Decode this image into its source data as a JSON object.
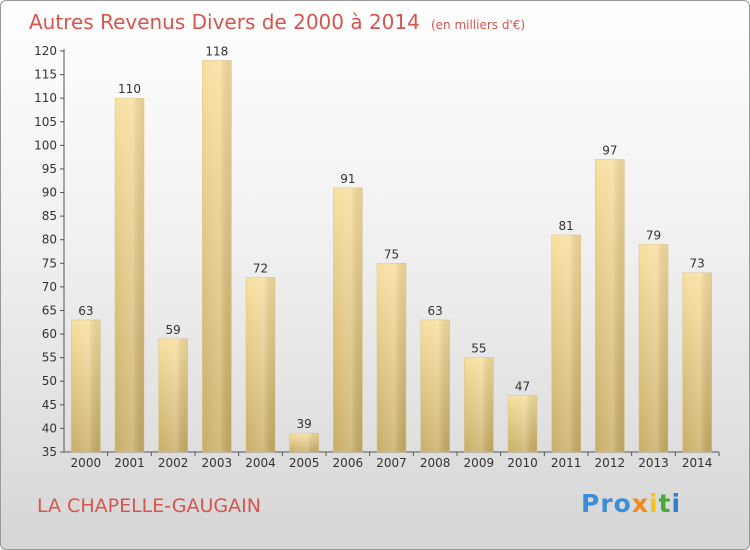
{
  "title": {
    "main": "Autres Revenus Divers de 2000 à 2014",
    "sub": "(en milliers d'€)"
  },
  "commune": "LA CHAPELLE-GAUGAIN",
  "logo": {
    "parts": [
      "Pro",
      "x",
      "i",
      "t",
      "i"
    ],
    "colors": [
      "#3a8fd8",
      "#f08a1c",
      "#f5c41a",
      "#47a83c",
      "#2f7fcf"
    ]
  },
  "chart_data": {
    "type": "bar",
    "title": "Autres Revenus Divers de 2000 à 2014",
    "xlabel": "",
    "ylabel": "",
    "categories": [
      "2000",
      "2001",
      "2002",
      "2003",
      "2004",
      "2005",
      "2006",
      "2007",
      "2008",
      "2009",
      "2010",
      "2011",
      "2012",
      "2013",
      "2014"
    ],
    "values": [
      63,
      110,
      59,
      118,
      72,
      39,
      91,
      75,
      63,
      55,
      47,
      81,
      97,
      79,
      73
    ],
    "ylim": [
      35,
      120
    ],
    "yticks": [
      35,
      40,
      45,
      50,
      55,
      60,
      65,
      70,
      75,
      80,
      85,
      90,
      95,
      100,
      105,
      110,
      115,
      120
    ],
    "grid": false,
    "bar_color": "#e8cc86"
  }
}
